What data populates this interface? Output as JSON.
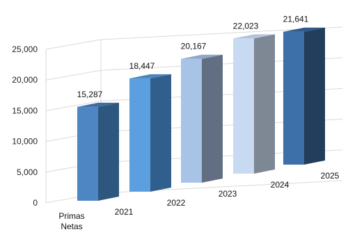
{
  "chart_data": {
    "type": "bar",
    "title": "",
    "xlabel": "",
    "ylabel": "",
    "categories": [
      "2021",
      "2022",
      "2023",
      "2024",
      "2025"
    ],
    "series": [
      {
        "name": "Primas Netas",
        "values": [
          15287,
          18447,
          20167,
          22023,
          21641
        ]
      }
    ],
    "data_labels": [
      "15,287",
      "18,447",
      "20,167",
      "22,023",
      "21,641"
    ],
    "ylim": [
      0,
      25000
    ],
    "yticks": [
      "0",
      "5,000",
      "10,000",
      "15,000",
      "20,000",
      "25,000"
    ],
    "series_axis_label": [
      "Primas",
      "Netas"
    ],
    "grid": true,
    "legend": "none",
    "colors": {
      "front": [
        "#4e86c4",
        "#5b9fdf",
        "#a7c3e6",
        "#c8daf1",
        "#3d6fa8"
      ],
      "side": [
        "#2e577f",
        "#315f8d",
        "#626f82",
        "#7e8794",
        "#223e5c"
      ],
      "top": [
        "#3d6e9f",
        "#4a85bd",
        "#8ea7c8",
        "#b2c4dd",
        "#2f5a88"
      ],
      "grid": "#d9d9d9"
    }
  }
}
